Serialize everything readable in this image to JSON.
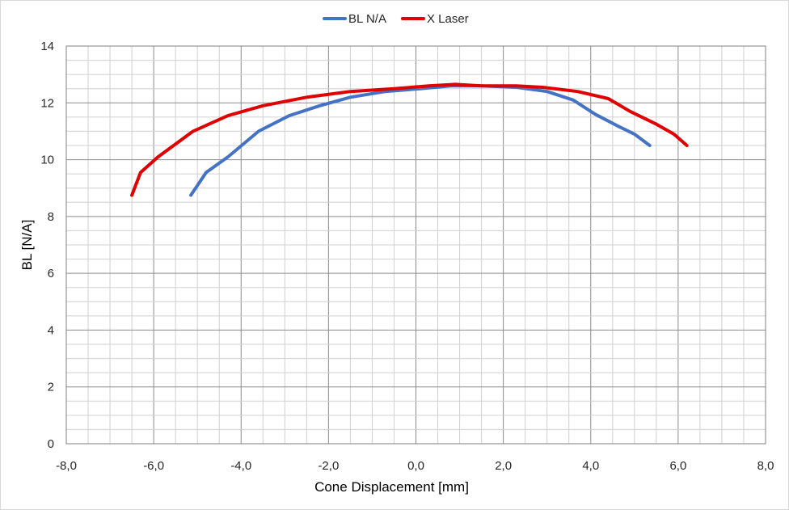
{
  "chart_data": {
    "type": "line",
    "title": "",
    "xlabel": "Cone Displacement [mm]",
    "ylabel": "BL [N/A]",
    "xlim": [
      -8.0,
      8.0
    ],
    "ylim": [
      0,
      14
    ],
    "x_ticks": [
      "-8,0",
      "-6,0",
      "-4,0",
      "-2,0",
      "0,0",
      "2,0",
      "4,0",
      "6,0",
      "8,0"
    ],
    "y_ticks": [
      "0",
      "2",
      "4",
      "6",
      "8",
      "10",
      "12",
      "14"
    ],
    "grid": true,
    "legend_position": "top",
    "series": [
      {
        "name": "BL N/A",
        "color": "#4472c4",
        "points": [
          [
            -5.15,
            8.75
          ],
          [
            -4.8,
            9.55
          ],
          [
            -4.3,
            10.1
          ],
          [
            -3.6,
            11.0
          ],
          [
            -2.9,
            11.55
          ],
          [
            -2.2,
            11.9
          ],
          [
            -1.5,
            12.2
          ],
          [
            -0.7,
            12.4
          ],
          [
            0.1,
            12.5
          ],
          [
            0.8,
            12.6
          ],
          [
            1.5,
            12.6
          ],
          [
            2.3,
            12.55
          ],
          [
            3.0,
            12.4
          ],
          [
            3.6,
            12.1
          ],
          [
            4.1,
            11.6
          ],
          [
            4.6,
            11.2
          ],
          [
            5.0,
            10.9
          ],
          [
            5.35,
            10.5
          ]
        ]
      },
      {
        "name": "X Laser",
        "color": "#e00000",
        "points": [
          [
            -6.5,
            8.75
          ],
          [
            -6.3,
            9.55
          ],
          [
            -5.9,
            10.1
          ],
          [
            -5.1,
            11.0
          ],
          [
            -4.3,
            11.55
          ],
          [
            -3.5,
            11.9
          ],
          [
            -2.5,
            12.2
          ],
          [
            -1.5,
            12.4
          ],
          [
            -0.5,
            12.5
          ],
          [
            0.3,
            12.6
          ],
          [
            0.9,
            12.65
          ],
          [
            1.5,
            12.6
          ],
          [
            2.3,
            12.6
          ],
          [
            2.9,
            12.55
          ],
          [
            3.7,
            12.4
          ],
          [
            4.4,
            12.15
          ],
          [
            4.9,
            11.7
          ],
          [
            5.5,
            11.25
          ],
          [
            5.9,
            10.9
          ],
          [
            6.2,
            10.5
          ]
        ]
      }
    ]
  }
}
